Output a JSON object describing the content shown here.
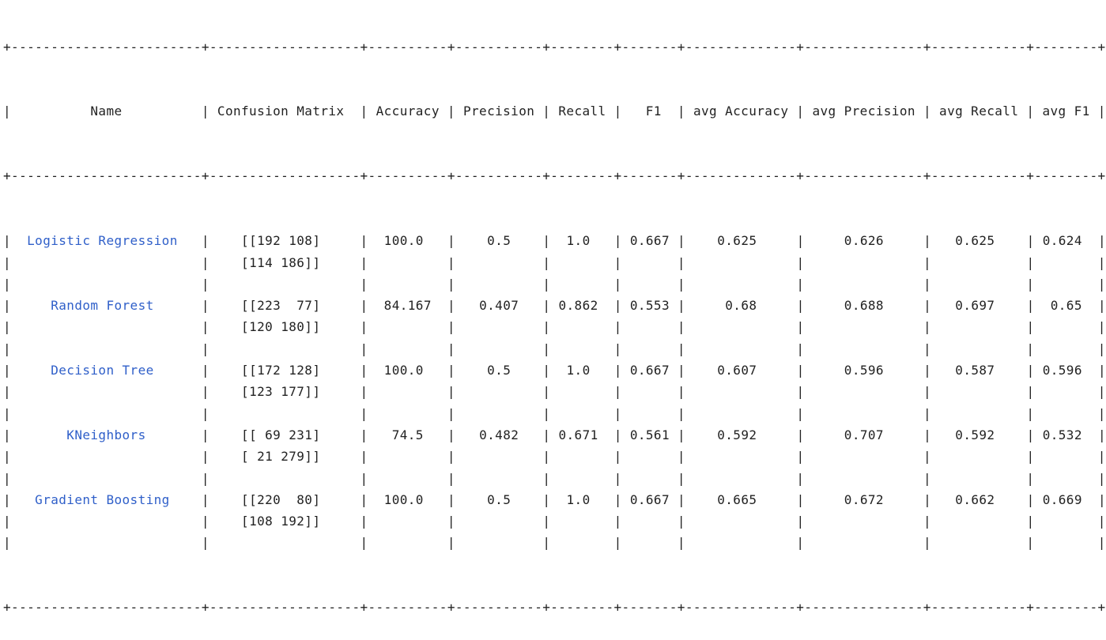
{
  "colors": {
    "text": "#222222",
    "name_link": "#2f5fc9",
    "background": "#ffffff"
  },
  "table": {
    "headers": [
      "Name",
      "Confusion Matrix",
      "Accuracy",
      "Precision",
      "Recall",
      "F1",
      "avg Accuracy",
      "avg Precision",
      "avg Recall",
      "avg F1"
    ],
    "rows": [
      {
        "name": "Logistic Regression",
        "cm": [
          "[[192 108]",
          "[114 186]]"
        ],
        "accuracy": "100.0",
        "precision": "0.5",
        "recall": "1.0",
        "f1": "0.667",
        "avg_accuracy": "0.625",
        "avg_precision": "0.626",
        "avg_recall": "0.625",
        "avg_f1": "0.624"
      },
      {
        "name": "Random Forest",
        "cm": [
          "[[223  77]",
          "[120 180]]"
        ],
        "accuracy": "84.167",
        "precision": "0.407",
        "recall": "0.862",
        "f1": "0.553",
        "avg_accuracy": "0.68",
        "avg_precision": "0.688",
        "avg_recall": "0.697",
        "avg_f1": "0.65"
      },
      {
        "name": "Decision Tree",
        "cm": [
          "[[172 128]",
          "[123 177]]"
        ],
        "accuracy": "100.0",
        "precision": "0.5",
        "recall": "1.0",
        "f1": "0.667",
        "avg_accuracy": "0.607",
        "avg_precision": "0.596",
        "avg_recall": "0.587",
        "avg_f1": "0.596"
      },
      {
        "name": "KNeighbors",
        "cm": [
          "[[ 69 231]",
          "[ 21 279]]"
        ],
        "accuracy": "74.5",
        "precision": "0.482",
        "recall": "0.671",
        "f1": "0.561",
        "avg_accuracy": "0.592",
        "avg_precision": "0.707",
        "avg_recall": "0.592",
        "avg_f1": "0.532"
      },
      {
        "name": "Gradient Boosting",
        "cm": [
          "[[220  80]",
          "[108 192]]"
        ],
        "accuracy": "100.0",
        "precision": "0.5",
        "recall": "1.0",
        "f1": "0.667",
        "avg_accuracy": "0.665",
        "avg_precision": "0.672",
        "avg_recall": "0.662",
        "avg_f1": "0.669"
      }
    ]
  }
}
